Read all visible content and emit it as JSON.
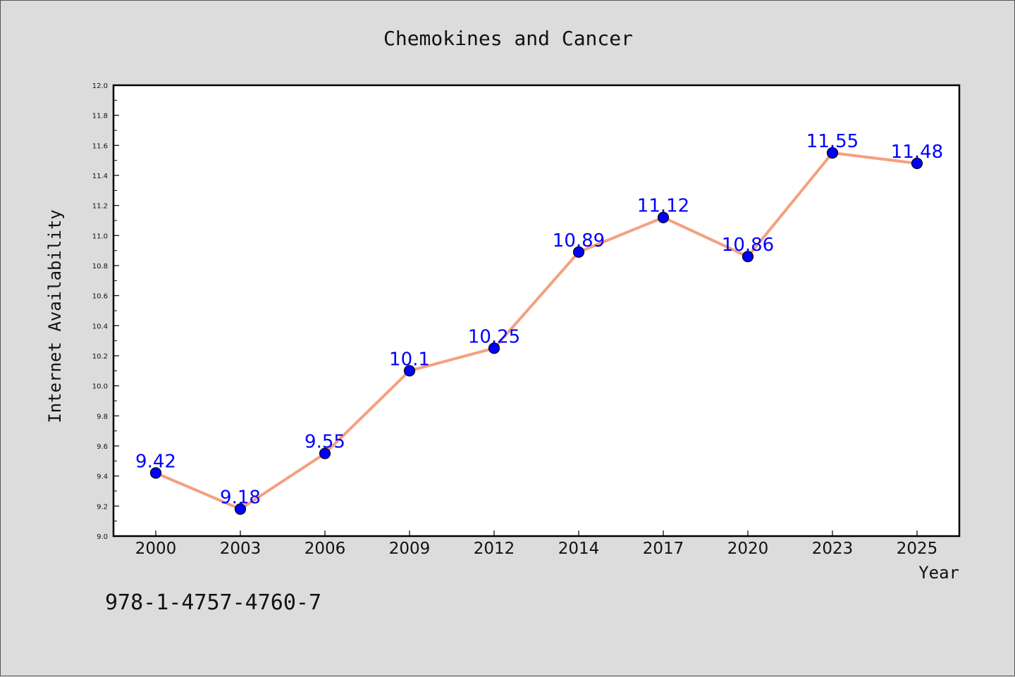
{
  "chart_data": {
    "type": "line",
    "title": "Chemokines and Cancer",
    "xlabel": "Year",
    "ylabel": "Internet Availability",
    "x": [
      "2000",
      "2003",
      "2006",
      "2009",
      "2012",
      "2014",
      "2017",
      "2020",
      "2023",
      "2025"
    ],
    "series": [
      {
        "values": [
          9.42,
          9.18,
          9.55,
          10.1,
          10.25,
          10.89,
          11.12,
          10.86,
          11.55,
          11.48
        ],
        "data_labels": [
          "9.42",
          "9.18",
          "9.55",
          "10.1",
          "10.25",
          "10.89",
          "11.12",
          "10.86",
          "11.55",
          "11.48"
        ]
      }
    ],
    "ylim": [
      9.0,
      12.0
    ],
    "yticks": [
      "9.0",
      "9.2",
      "9.4",
      "9.6",
      "9.8",
      "10.0",
      "10.2",
      "10.4",
      "10.6",
      "10.8",
      "11.0",
      "11.2",
      "11.4",
      "11.6",
      "11.8",
      "12.0"
    ],
    "grid": false,
    "legend": "none",
    "colors": {
      "line": "#f4a07f",
      "marker": "#0000ff",
      "data_label": "#0000ff",
      "background": "#dcdcdc",
      "plot_background": "#ffffff"
    }
  },
  "footer": {
    "code": "978-1-4757-4760-7"
  }
}
